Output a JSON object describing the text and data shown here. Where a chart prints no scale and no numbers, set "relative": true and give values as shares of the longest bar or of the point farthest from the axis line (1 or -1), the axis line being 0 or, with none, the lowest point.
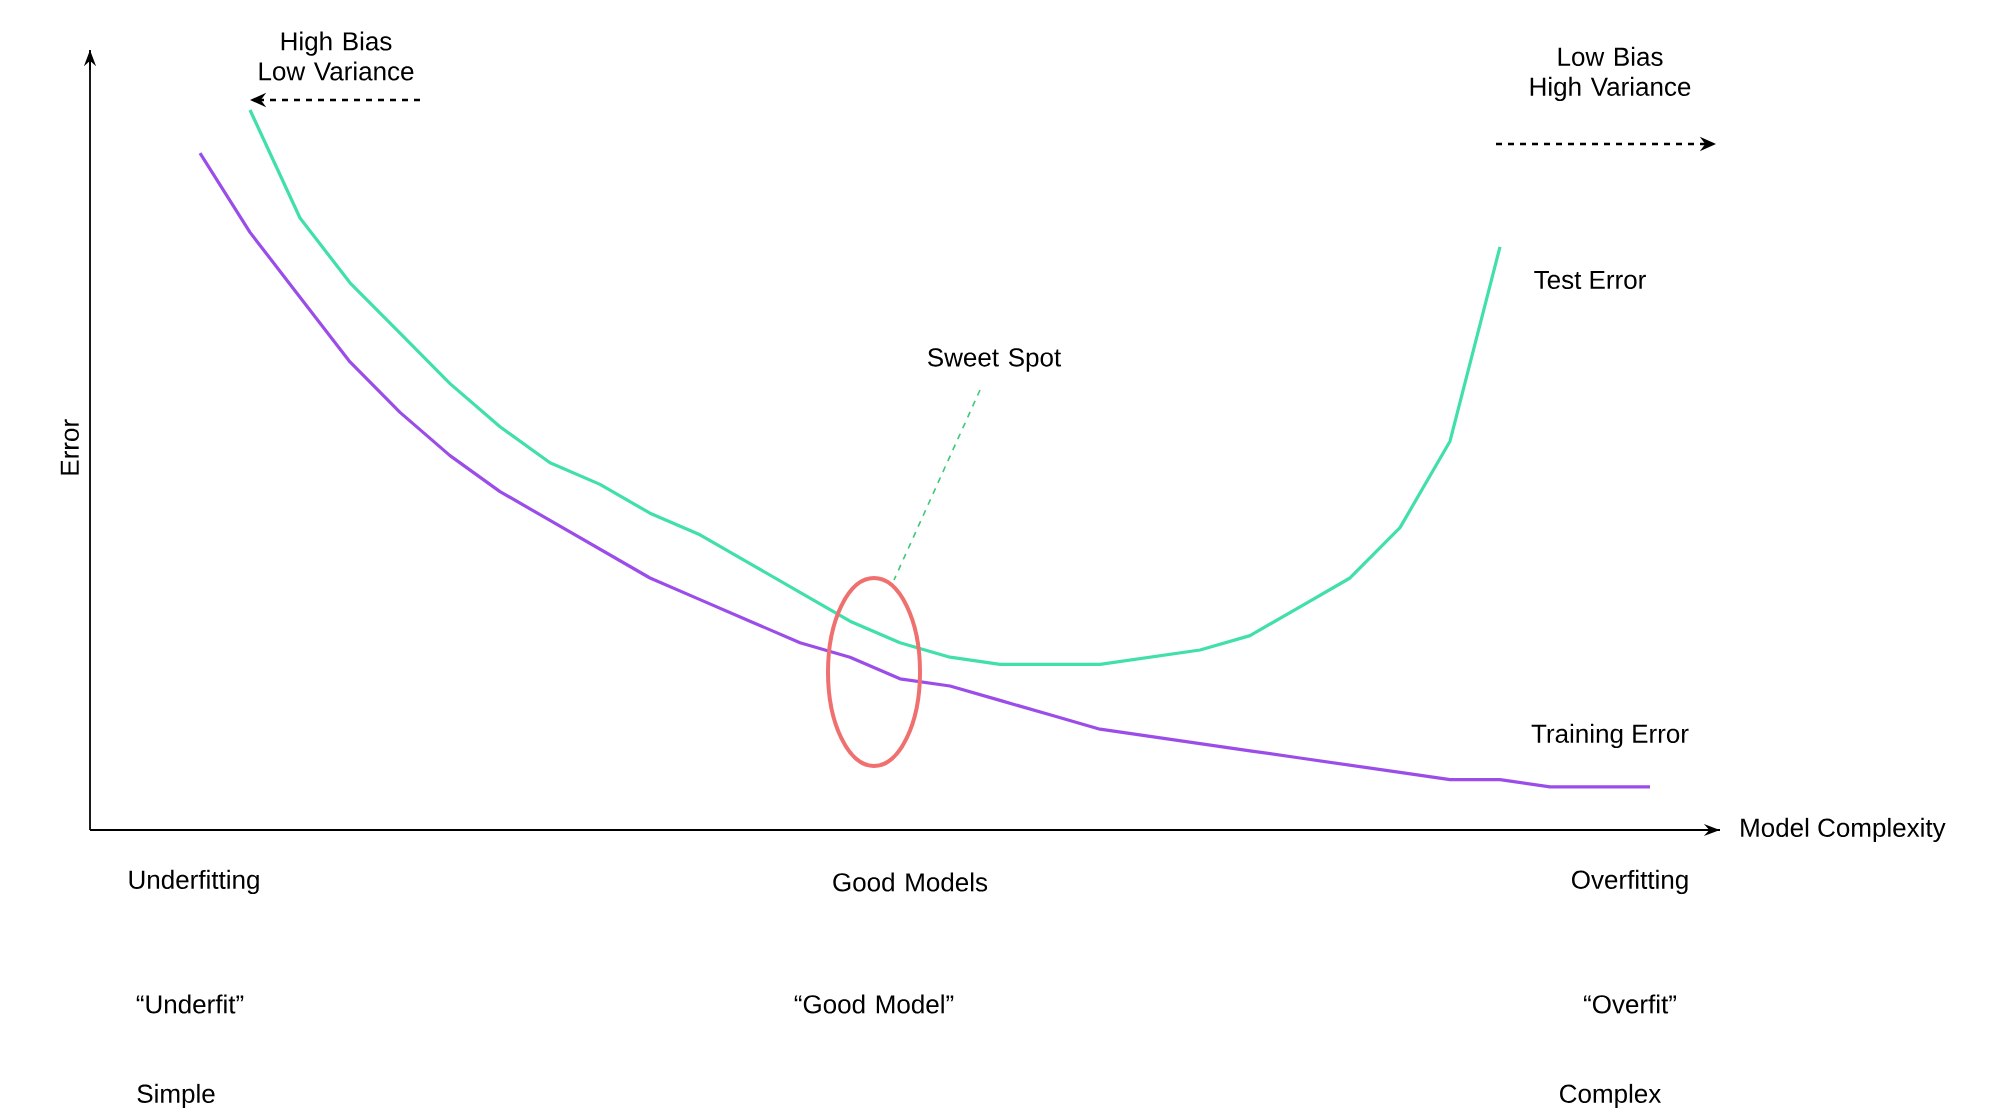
{
  "chart_data": {
    "type": "line",
    "relative": true,
    "marker": "none",
    "xlabel": "Model Complexity",
    "ylabel": "Error",
    "categories": [
      null,
      null,
      null,
      null,
      null,
      null,
      null,
      null,
      null,
      null,
      null,
      null,
      null,
      null,
      null,
      null,
      null,
      null,
      null,
      null,
      null,
      null,
      null,
      null,
      null,
      null,
      null,
      null,
      null,
      null
    ],
    "series": [
      {
        "name": "Test Error",
        "color": "#40e0a8",
        "values": [
          null,
          1.0,
          0.85,
          0.76,
          0.69,
          0.62,
          0.56,
          0.51,
          0.48,
          0.44,
          0.41,
          0.37,
          0.33,
          0.29,
          0.26,
          0.24,
          0.23,
          0.23,
          0.23,
          0.24,
          0.25,
          0.27,
          0.31,
          0.35,
          0.42,
          0.54,
          0.81,
          null,
          null,
          null
        ]
      },
      {
        "name": "Training Error",
        "color": "#9b4dea",
        "values": [
          0.94,
          0.83,
          0.74,
          0.65,
          0.58,
          0.52,
          0.47,
          0.43,
          0.39,
          0.35,
          0.32,
          0.29,
          0.26,
          0.24,
          0.21,
          0.2,
          0.18,
          0.16,
          0.14,
          0.13,
          0.12,
          0.11,
          0.1,
          0.09,
          0.08,
          0.07,
          0.07,
          0.06,
          0.06,
          0.06
        ]
      }
    ],
    "annotations": [
      "High Bias Low Variance",
      "Low Bias High Variance",
      "Sweet Spot",
      "Underfitting",
      "Good Models",
      "Overfitting",
      "“Underfit”",
      "“Good Model”",
      "“Overfit”",
      "Simple",
      "Complex"
    ]
  }
}
